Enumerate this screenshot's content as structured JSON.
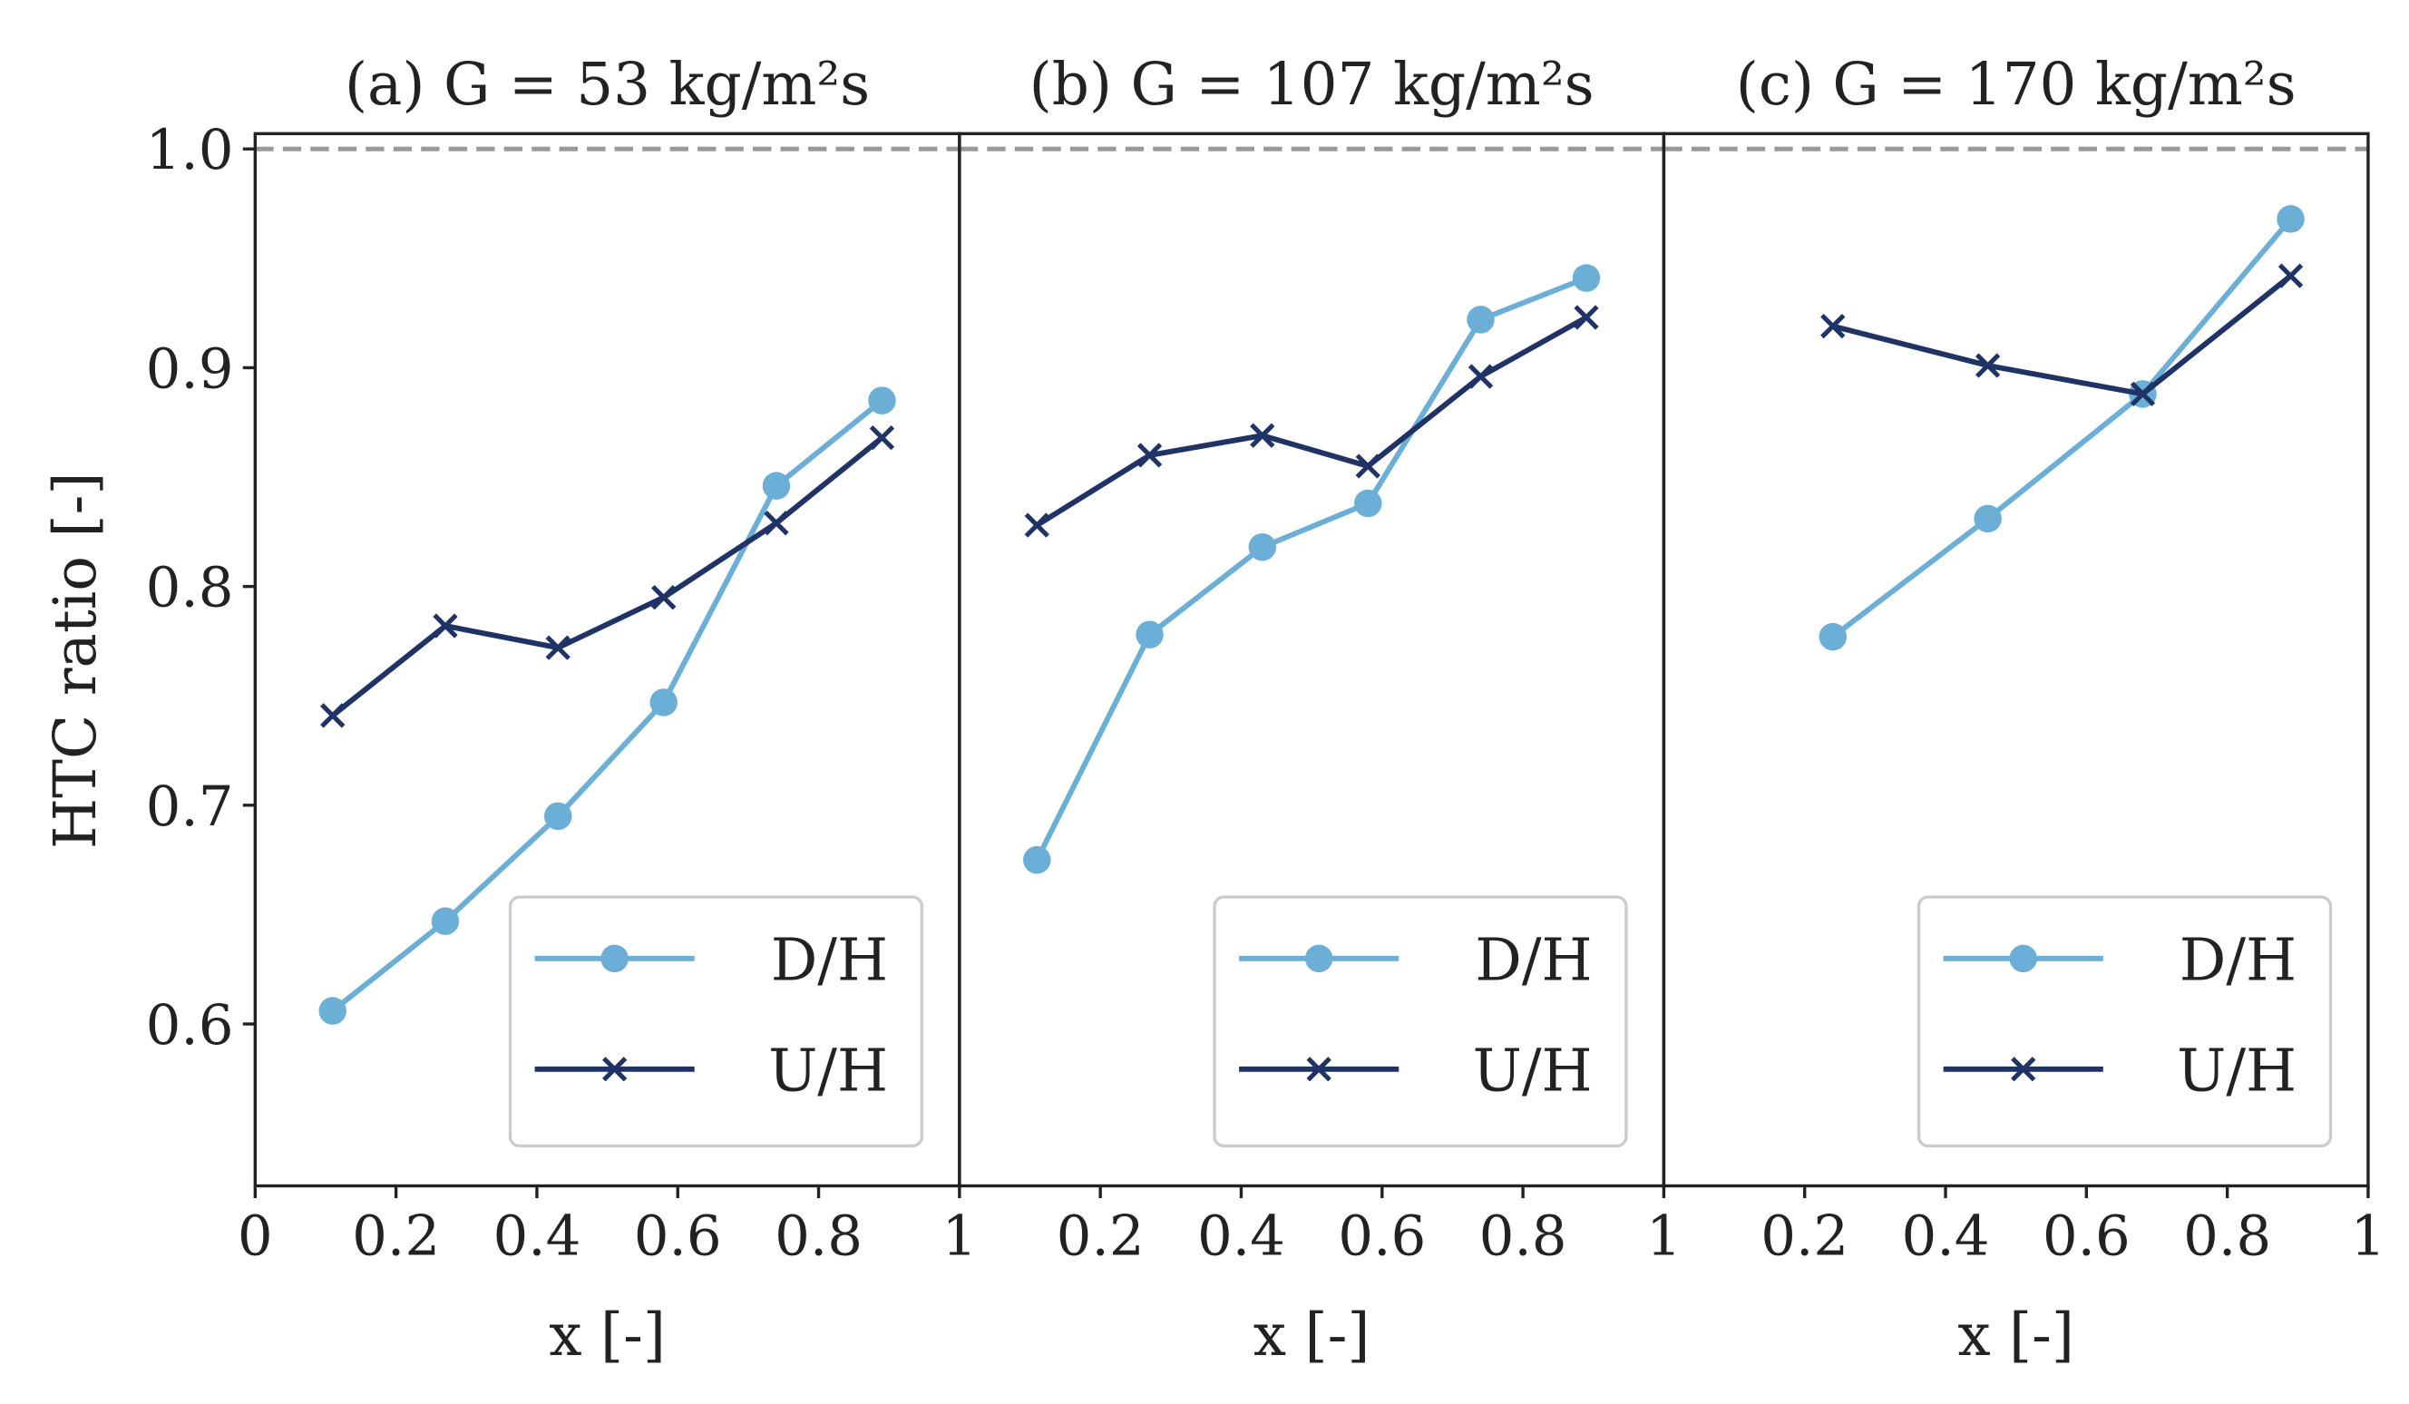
{
  "chart_data": [
    {
      "type": "line",
      "title": "(a) G = 53 kg/m²s",
      "xlabel": "x [-]",
      "ylabel": "HTC ratio [-]",
      "xlim": [
        0,
        1
      ],
      "ylim": [
        0.526,
        1.007
      ],
      "xticks": [
        "0",
        "0.2",
        "0.4",
        "0.6",
        "0.8",
        "1"
      ],
      "yticks": [
        "0.6",
        "0.7",
        "0.8",
        "0.9",
        "1.0"
      ],
      "reference_line": 1.0,
      "legend_position": "lower-right",
      "series": [
        {
          "name": "D/H",
          "marker": "circle",
          "color": "#6baed6",
          "x": [
            0.11,
            0.27,
            0.43,
            0.58,
            0.74,
            0.89
          ],
          "y": [
            0.606,
            0.647,
            0.695,
            0.747,
            0.846,
            0.885
          ]
        },
        {
          "name": "U/H",
          "marker": "x",
          "color": "#1f3366",
          "x": [
            0.11,
            0.27,
            0.43,
            0.58,
            0.74,
            0.89
          ],
          "y": [
            0.741,
            0.782,
            0.772,
            0.795,
            0.829,
            0.868
          ]
        }
      ]
    },
    {
      "type": "line",
      "title": "(b) G = 107 kg/m²s",
      "xlabel": "x [-]",
      "xlim": [
        0,
        1
      ],
      "ylim": [
        0.526,
        1.007
      ],
      "xticks": [
        "0.2",
        "0.4",
        "0.6",
        "0.8",
        "1"
      ],
      "reference_line": 1.0,
      "legend_position": "lower-right",
      "series": [
        {
          "name": "D/H",
          "marker": "circle",
          "color": "#6baed6",
          "x": [
            0.11,
            0.27,
            0.43,
            0.58,
            0.74,
            0.89
          ],
          "y": [
            0.675,
            0.778,
            0.818,
            0.838,
            0.922,
            0.941
          ]
        },
        {
          "name": "U/H",
          "marker": "x",
          "color": "#1f3366",
          "x": [
            0.11,
            0.27,
            0.43,
            0.58,
            0.74,
            0.89
          ],
          "y": [
            0.828,
            0.86,
            0.869,
            0.855,
            0.896,
            0.923
          ]
        }
      ]
    },
    {
      "type": "line",
      "title": "(c) G = 170 kg/m²s",
      "xlabel": "x [-]",
      "xlim": [
        0,
        1
      ],
      "ylim": [
        0.526,
        1.007
      ],
      "xticks": [
        "0.2",
        "0.4",
        "0.6",
        "0.8",
        "1"
      ],
      "reference_line": 1.0,
      "legend_position": "lower-right",
      "series": [
        {
          "name": "D/H",
          "marker": "circle",
          "color": "#6baed6",
          "x": [
            0.24,
            0.46,
            0.68,
            0.89
          ],
          "y": [
            0.777,
            0.831,
            0.888,
            0.968
          ]
        },
        {
          "name": "U/H",
          "marker": "x",
          "color": "#1f3366",
          "x": [
            0.24,
            0.46,
            0.68,
            0.89
          ],
          "y": [
            0.919,
            0.901,
            0.888,
            0.942
          ]
        }
      ]
    }
  ]
}
